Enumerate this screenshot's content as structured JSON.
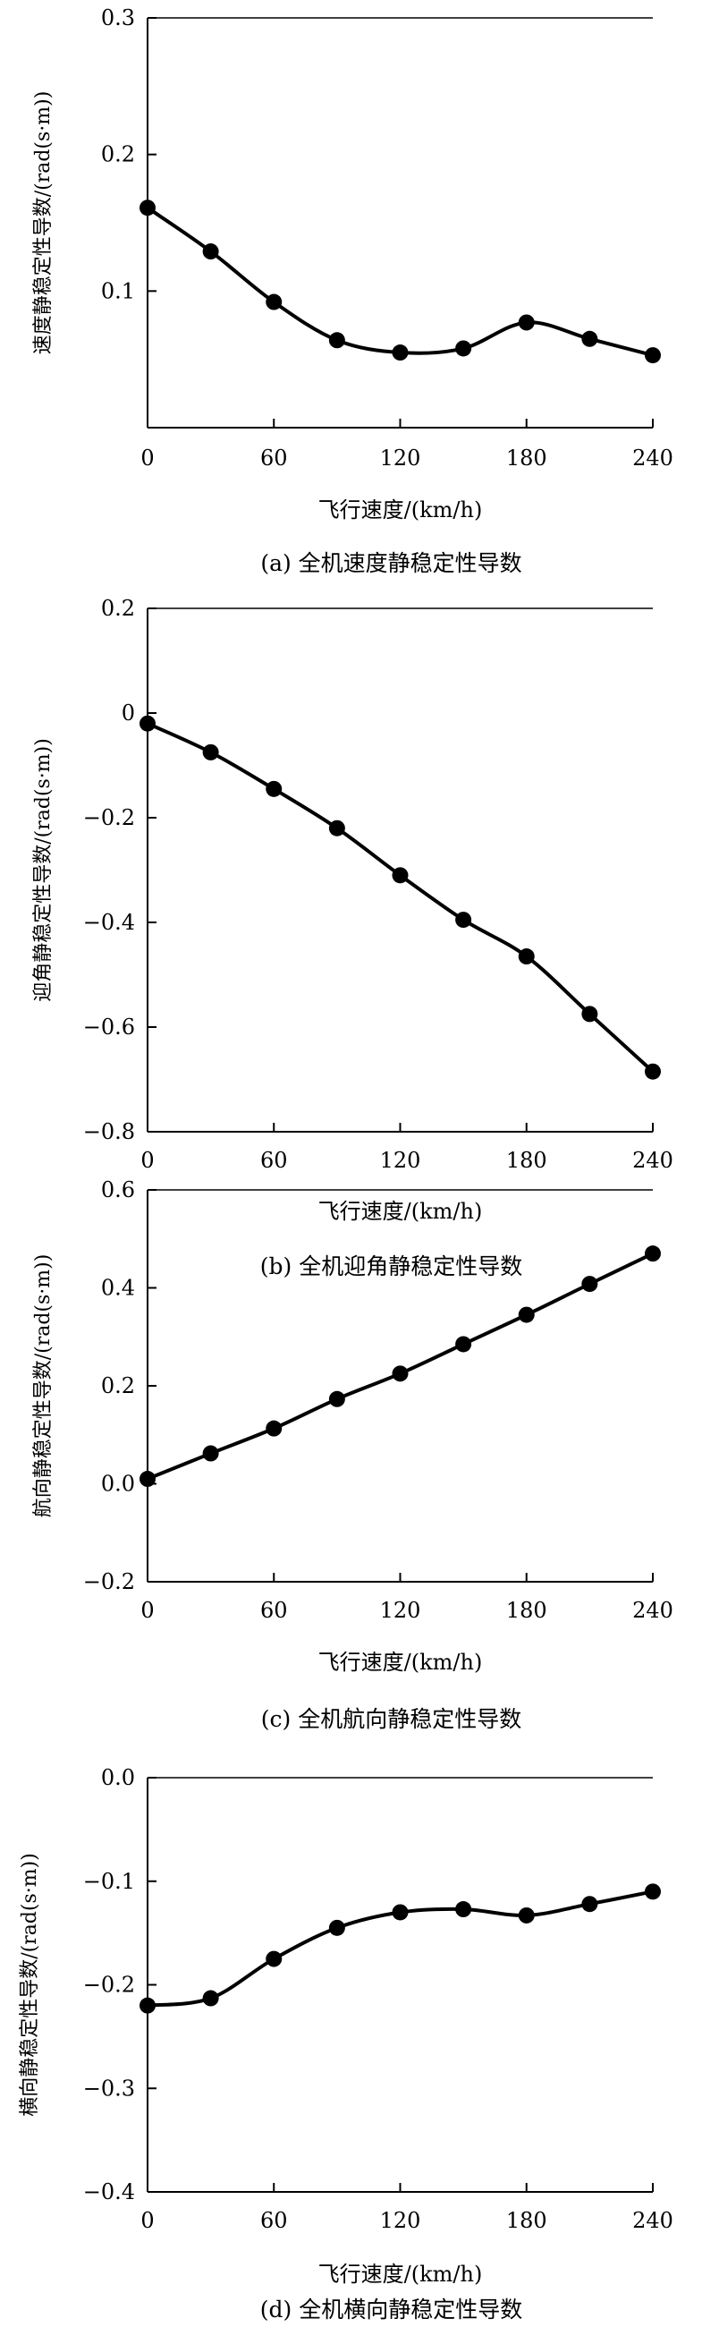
{
  "figure": {
    "charts": [
      {
        "caption": "(a) 全机速度静稳定性导数",
        "xlabel": "飞行速度/(km/h)",
        "ylabel": "速度静稳定性导数/(rad(s·m))",
        "xticks": [
          "0",
          "60",
          "120",
          "180",
          "240"
        ],
        "yticks": [
          "0.3",
          "0.2",
          "0.1"
        ]
      },
      {
        "caption": "(b) 全机迎角静稳定性导数",
        "xlabel": "飞行速度/(km/h)",
        "ylabel": "迎角静稳定性导数/(rad(s·m))",
        "xticks": [
          "0",
          "60",
          "120",
          "180",
          "240"
        ],
        "yticks": [
          "0.2",
          "0",
          "−0.2",
          "−0.4",
          "−0.6",
          "−0.8"
        ]
      },
      {
        "caption": "(c) 全机航向静稳定性导数",
        "xlabel": "飞行速度/(km/h)",
        "ylabel": "航向静稳定性导数/(rad(s·m))",
        "xticks": [
          "0",
          "60",
          "120",
          "180",
          "240"
        ],
        "yticks": [
          "0.6",
          "0.4",
          "0.2",
          "0.0",
          "−0.2"
        ]
      },
      {
        "caption": "(d) 全机横向静稳定性导数",
        "xlabel": "飞行速度/(km/h)",
        "ylabel": "横向静稳定性导数/(rad(s·m))",
        "xticks": [
          "0",
          "60",
          "120",
          "180",
          "240"
        ],
        "yticks": [
          "0.0",
          "−0.1",
          "−0.2",
          "−0.3",
          "−0.4"
        ]
      }
    ]
  },
  "chart_data": [
    {
      "type": "line",
      "title": "(a) 全机速度静稳定性导数",
      "xlabel": "飞行速度/(km/h)",
      "ylabel": "速度静稳定性导数/(rad(s·m))",
      "xlim": [
        0,
        240
      ],
      "ylim": [
        0,
        0.3
      ],
      "x": [
        0,
        30,
        60,
        90,
        120,
        150,
        180,
        210,
        240
      ],
      "series": [
        {
          "values": [
            0.161,
            0.129,
            0.092,
            0.064,
            0.055,
            0.058,
            0.077,
            0.065,
            0.053
          ]
        }
      ],
      "color": "#000000",
      "marker": "filled-circle",
      "grid": false
    },
    {
      "type": "line",
      "title": "(b) 全机迎角静稳定性导数",
      "xlabel": "飞行速度/(km/h)",
      "ylabel": "迎角静稳定性导数/(rad(s·m))",
      "xlim": [
        0,
        240
      ],
      "ylim": [
        -0.8,
        0.2
      ],
      "x": [
        0,
        30,
        60,
        90,
        120,
        150,
        180,
        210,
        240
      ],
      "series": [
        {
          "values": [
            -0.02,
            -0.075,
            -0.145,
            -0.22,
            -0.31,
            -0.395,
            -0.465,
            -0.575,
            -0.685
          ]
        }
      ],
      "color": "#000000",
      "marker": "filled-circle",
      "grid": false
    },
    {
      "type": "line",
      "title": "(c) 全机航向静稳定性导数",
      "xlabel": "飞行速度/(km/h)",
      "ylabel": "航向静稳定性导数/(rad(s·m))",
      "xlim": [
        0,
        240
      ],
      "ylim": [
        -0.2,
        0.6
      ],
      "x": [
        0,
        30,
        60,
        90,
        120,
        150,
        180,
        210,
        240
      ],
      "series": [
        {
          "values": [
            0.01,
            0.062,
            0.113,
            0.173,
            0.225,
            0.285,
            0.345,
            0.408,
            0.47
          ]
        }
      ],
      "color": "#000000",
      "marker": "filled-circle",
      "grid": false
    },
    {
      "type": "line",
      "title": "(d) 全机横向静稳定性导数",
      "xlabel": "飞行速度/(km/h)",
      "ylabel": "横向静稳定性导数/(rad(s·m))",
      "xlim": [
        0,
        240
      ],
      "ylim": [
        -0.4,
        0
      ],
      "x": [
        0,
        30,
        60,
        90,
        120,
        150,
        180,
        210,
        240
      ],
      "series": [
        {
          "values": [
            -0.22,
            -0.213,
            -0.175,
            -0.145,
            -0.13,
            -0.127,
            -0.133,
            -0.122,
            -0.11
          ]
        }
      ],
      "color": "#000000",
      "marker": "filled-circle",
      "grid": false
    }
  ]
}
